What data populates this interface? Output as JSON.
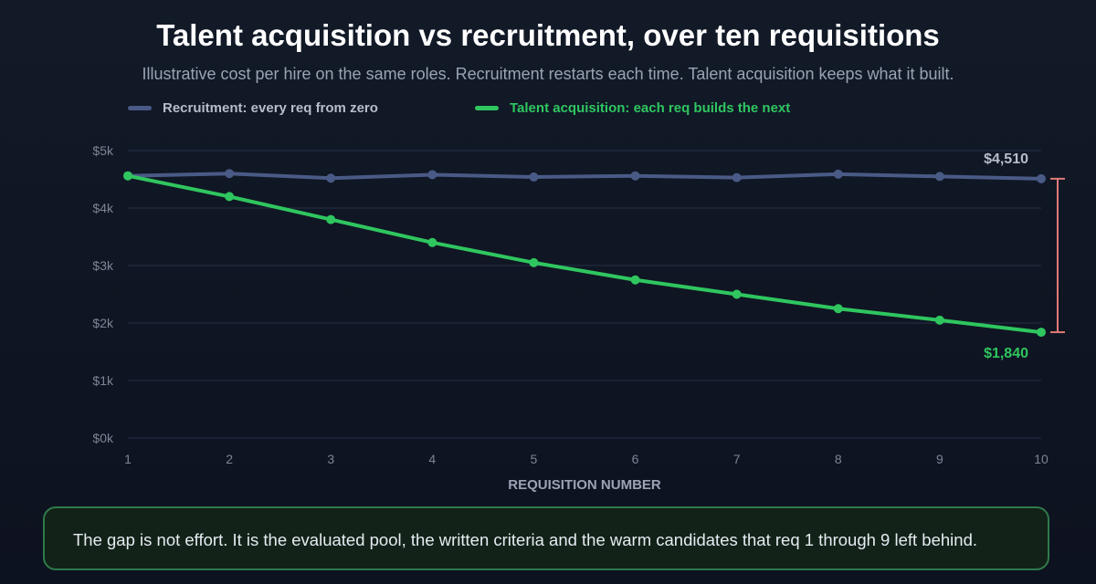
{
  "colors": {
    "recruitment": "#4a5a86",
    "talent_acquisition": "#2fc65f",
    "gap_bracket": "#e07a78",
    "grid": "#243047",
    "tick_text": "#7d8596",
    "axis_title": "#9aa3b4",
    "label_recruitment": "#b7bdc9",
    "label_talent": "#2fc65f"
  },
  "chart_data": {
    "type": "line",
    "title": "Talent acquisition vs recruitment, over ten requisitions",
    "subtitle": "Illustrative cost per hire on the same roles. Recruitment restarts each time. Talent acquisition keeps what it built.",
    "xlabel": "REQUISITION NUMBER",
    "ylabel": "",
    "x": [
      1,
      2,
      3,
      4,
      5,
      6,
      7,
      8,
      9,
      10
    ],
    "x_tick_labels": [
      "1",
      "2",
      "3",
      "4",
      "5",
      "6",
      "7",
      "8",
      "9",
      "10"
    ],
    "ylim": [
      0,
      5000
    ],
    "y_ticks": [
      0,
      1000,
      2000,
      3000,
      4000,
      5000
    ],
    "y_tick_labels": [
      "$0k",
      "$1k",
      "$2k",
      "$3k",
      "$4k",
      "$5k"
    ],
    "grid": true,
    "legend_position": "top-left",
    "series": [
      {
        "name": "Recruitment: every req from zero",
        "values": [
          4560,
          4600,
          4520,
          4580,
          4540,
          4560,
          4530,
          4590,
          4550,
          4510
        ],
        "end_label": "$4,510"
      },
      {
        "name": "Talent acquisition: each req builds the next",
        "values": [
          4560,
          4200,
          3800,
          3400,
          3050,
          2750,
          2500,
          2250,
          2050,
          1840
        ],
        "end_label": "$1,840"
      }
    ],
    "annotations": [
      "Gap bracket between $4,510 and $1,840 at requisition 10"
    ]
  },
  "callout": {
    "text": "The gap is not effort. It is the evaluated pool, the written criteria and the warm candidates that req 1 through 9 left behind."
  }
}
